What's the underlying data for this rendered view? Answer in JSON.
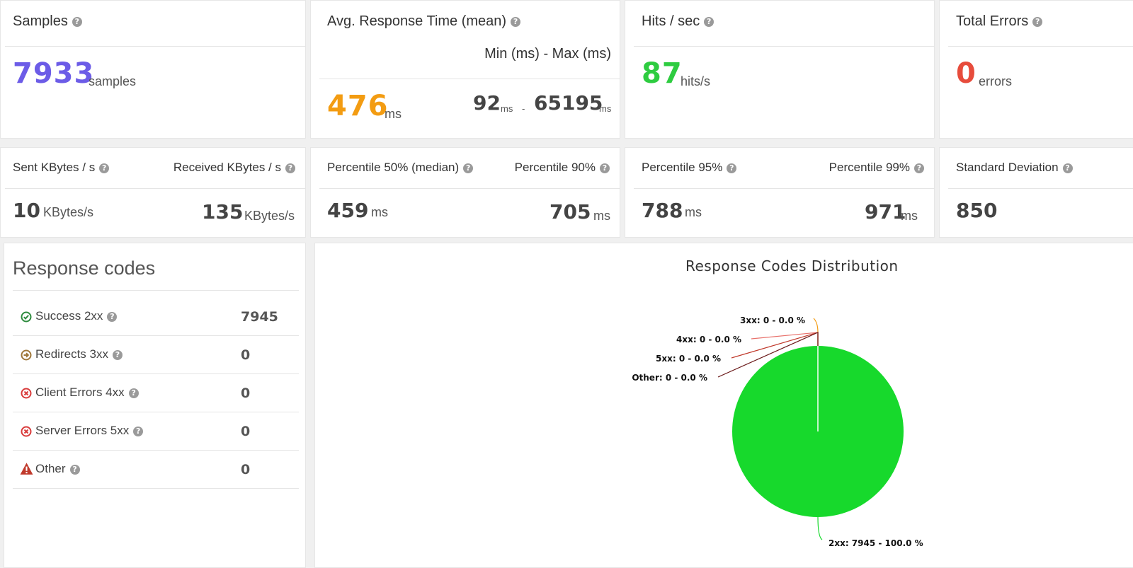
{
  "samples": {
    "title": "Samples",
    "value": "7933",
    "unit": "samples",
    "color": "#6c5ce7"
  },
  "avg_response": {
    "title": "Avg. Response Time (mean)",
    "minmax_title": "Min (ms) - Max (ms)",
    "value": "476",
    "unit": "ms",
    "color": "#f39c12",
    "min": "92",
    "min_unit": "ms",
    "separator": "-",
    "max": "65195",
    "max_unit": "ms"
  },
  "hits": {
    "title": "Hits / sec",
    "value": "87",
    "unit": "hits/s",
    "color": "#2ecc40"
  },
  "errors": {
    "title": "Total Errors",
    "value": "0",
    "unit": "errors",
    "color": "#e74c3c"
  },
  "kbytes": {
    "sent_title": "Sent KBytes / s",
    "received_title": "Received KBytes / s",
    "sent": "10",
    "sent_unit": "KBytes/s",
    "received": "135",
    "received_unit": "KBytes/s"
  },
  "p50_90": {
    "p50_title": "Percentile 50% (median)",
    "p90_title": "Percentile 90%",
    "p50": "459",
    "p50_unit": "ms",
    "p90": "705",
    "p90_unit": "ms"
  },
  "p95_99": {
    "p95_title": "Percentile 95%",
    "p99_title": "Percentile 99%",
    "p95": "788",
    "p95_unit": "ms",
    "p99": "971",
    "p99_unit": "ms"
  },
  "stddev": {
    "title": "Standard Deviation",
    "value": "850"
  },
  "help_glyph": "?",
  "response_codes": {
    "title": "Response codes",
    "rows": [
      {
        "label": "Success 2xx",
        "value": "7945",
        "icon": "check-circle-icon",
        "color": "#2e8b3e"
      },
      {
        "label": "Redirects 3xx",
        "value": "0",
        "icon": "arrow-circle-icon",
        "color": "#a0783a"
      },
      {
        "label": "Client Errors 4xx",
        "value": "0",
        "icon": "x-circle-icon",
        "color": "#d93b3b"
      },
      {
        "label": "Server Errors 5xx",
        "value": "0",
        "icon": "x-circle-icon",
        "color": "#d93b3b"
      },
      {
        "label": "Other",
        "value": "0",
        "icon": "warning-icon",
        "color": "#c0392b"
      }
    ]
  },
  "chart_data": {
    "type": "pie",
    "title": "Response Codes Distribution",
    "slices": [
      {
        "label": "2xx: 7945 - 100.0 %",
        "value": 7945,
        "color": "#17d92c",
        "leader_color": "#17d92c"
      },
      {
        "label": "3xx: 0 - 0.0 %",
        "value": 0,
        "color": "#f39c12",
        "leader_color": "#f39c12"
      },
      {
        "label": "4xx: 0 - 0.0 %",
        "value": 0,
        "color": "#e8716b",
        "leader_color": "#e8716b"
      },
      {
        "label": "5xx: 0 - 0.0 %",
        "value": 0,
        "color": "#c0392b",
        "leader_color": "#c0392b"
      },
      {
        "label": "Other: 0 - 0.0 %",
        "value": 0,
        "color": "#6b1a1a",
        "leader_color": "#6b1a1a"
      }
    ]
  }
}
